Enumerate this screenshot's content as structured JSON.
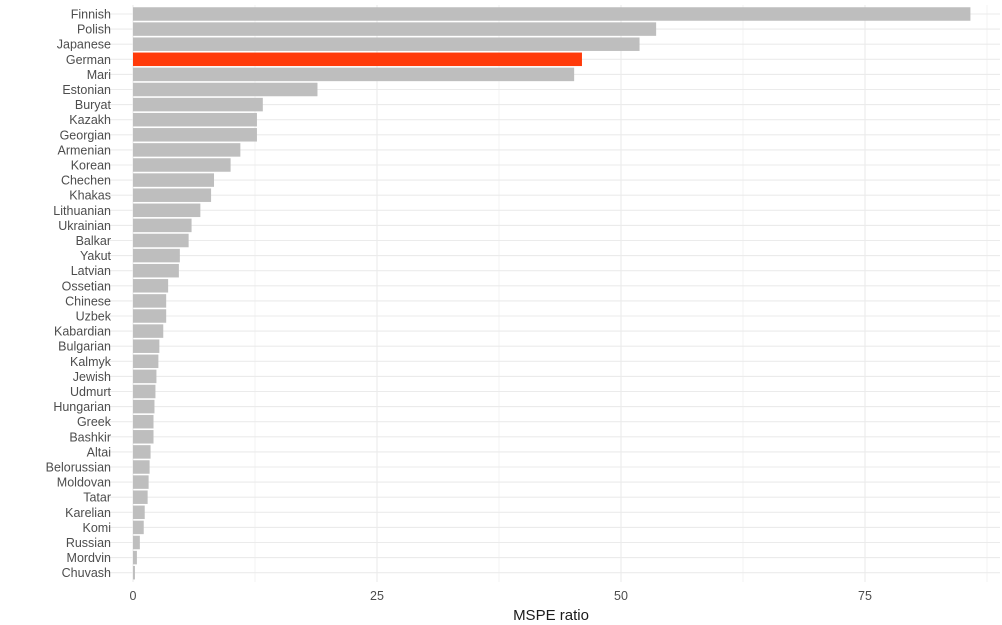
{
  "chart_data": {
    "type": "bar",
    "orientation": "horizontal",
    "title": "",
    "xlabel": "MSPE ratio",
    "ylabel": "",
    "xlim": [
      0,
      88
    ],
    "xticks": [
      0,
      25,
      50,
      75
    ],
    "grid": true,
    "highlight": "German",
    "colors": {
      "default": "#bebebe",
      "highlight": "#ff3a0a",
      "grid": "#ebebeb",
      "text": "#4d4d4d"
    },
    "categories": [
      "Finnish",
      "Polish",
      "Japanese",
      "German",
      "Mari",
      "Estonian",
      "Buryat",
      "Kazakh",
      "Georgian",
      "Armenian",
      "Korean",
      "Chechen",
      "Khakas",
      "Lithuanian",
      "Ukrainian",
      "Balkar",
      "Yakut",
      "Latvian",
      "Ossetian",
      "Chinese",
      "Uzbek",
      "Kabardian",
      "Bulgarian",
      "Kalmyk",
      "Jewish",
      "Udmurt",
      "Hungarian",
      "Greek",
      "Bashkir",
      "Altai",
      "Belorussian",
      "Moldovan",
      "Tatar",
      "Karelian",
      "Komi",
      "Russian",
      "Mordvin",
      "Chuvash"
    ],
    "values": [
      85.8,
      53.6,
      51.9,
      46.0,
      45.2,
      18.9,
      13.3,
      12.7,
      12.7,
      11.0,
      10.0,
      8.3,
      8.0,
      6.9,
      6.0,
      5.7,
      4.8,
      4.7,
      3.6,
      3.4,
      3.4,
      3.1,
      2.7,
      2.6,
      2.4,
      2.3,
      2.2,
      2.1,
      2.1,
      1.8,
      1.7,
      1.6,
      1.5,
      1.2,
      1.1,
      0.7,
      0.4,
      0.2
    ]
  }
}
